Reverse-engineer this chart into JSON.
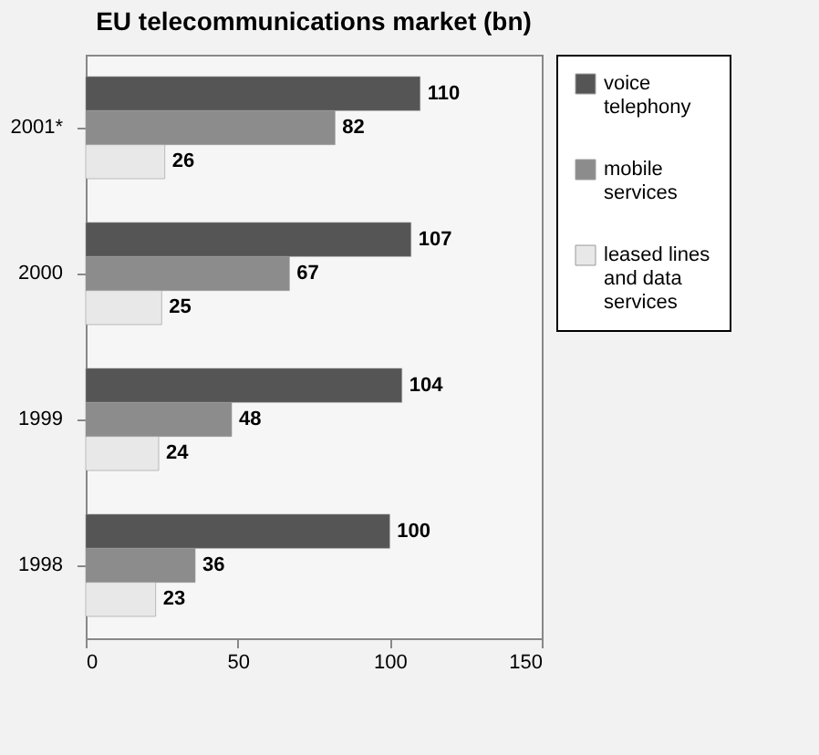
{
  "chart_data": {
    "type": "bar",
    "title": "EU telecommunications market (bn)",
    "orientation": "horizontal",
    "categories": [
      "2001*",
      "2000",
      "1999",
      "1998"
    ],
    "series": [
      {
        "name": "voice telephony",
        "color": "#555555",
        "values": [
          110,
          107,
          104,
          100
        ]
      },
      {
        "name": "mobile services",
        "color": "#8c8c8c",
        "values": [
          82,
          67,
          48,
          36
        ]
      },
      {
        "name": "leased lines and data services",
        "color": "#e8e8e8",
        "values": [
          26,
          25,
          24,
          23
        ]
      }
    ],
    "xlim": [
      0,
      150
    ],
    "xticks": [
      0,
      50,
      100,
      150
    ],
    "data_labels": true,
    "legend": "right",
    "grid": false
  }
}
